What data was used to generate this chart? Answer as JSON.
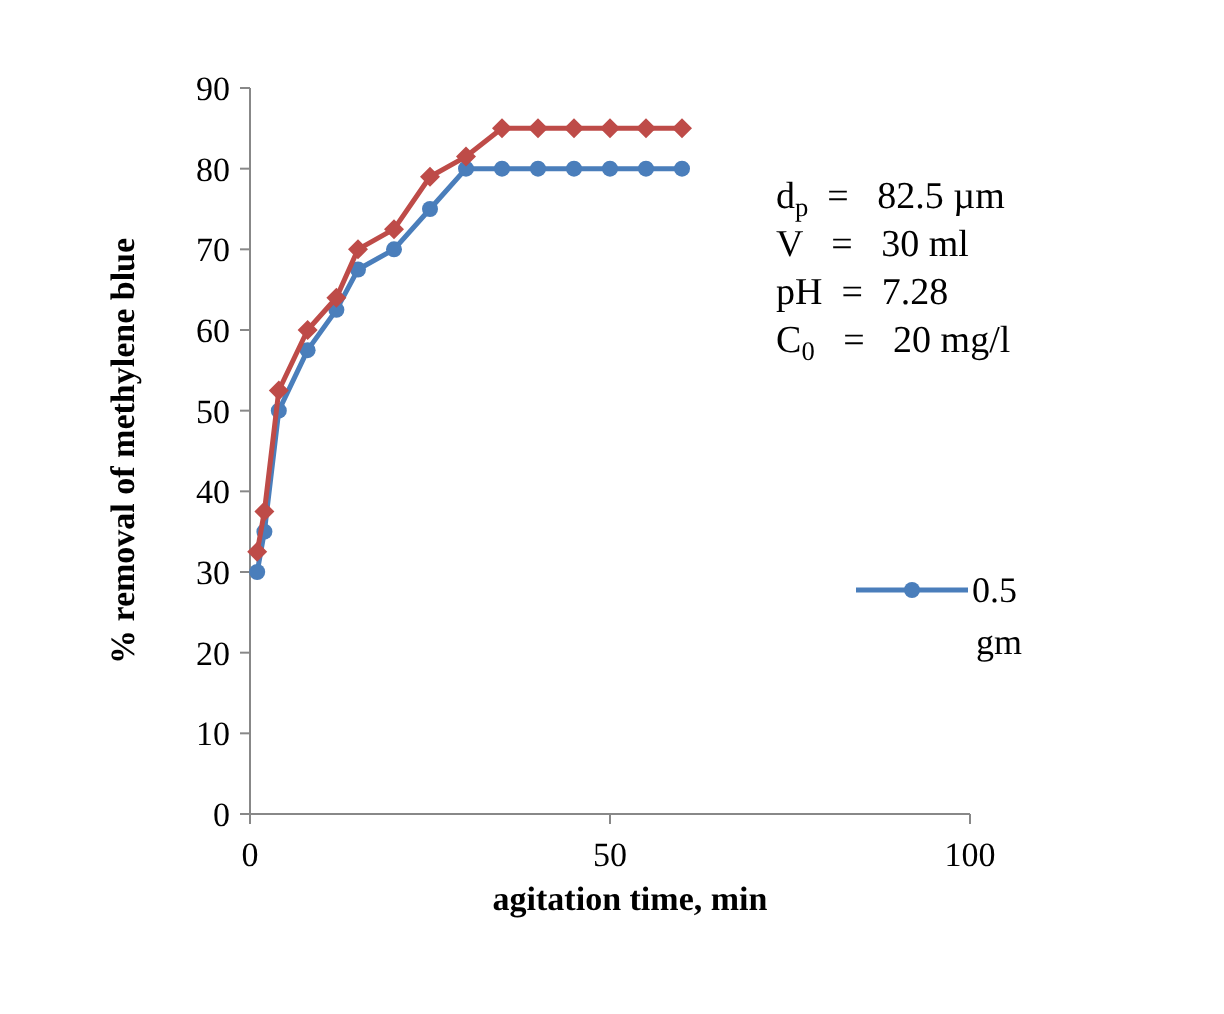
{
  "chart_data": {
    "type": "line",
    "xlabel": "agitation time, min",
    "ylabel": "% removal of methylene blue",
    "xlim": [
      0,
      100
    ],
    "xticks": [
      0,
      50,
      100
    ],
    "ylim": [
      0,
      90
    ],
    "yticks": [
      0,
      10,
      20,
      30,
      40,
      50,
      60,
      70,
      80,
      90
    ],
    "x": [
      1,
      2,
      4,
      8,
      12,
      15,
      20,
      25,
      30,
      35,
      40,
      45,
      50,
      55,
      60
    ],
    "series": [
      {
        "name": "0.5 gm",
        "color": "#4a7ebb",
        "marker": "circle",
        "values": [
          30,
          35,
          50,
          57.5,
          62.5,
          67.5,
          70,
          75,
          80,
          80,
          80,
          80,
          80,
          80,
          80
        ]
      },
      {
        "color": "#be4b48",
        "marker": "diamond",
        "values": [
          32.5,
          37.5,
          52.5,
          60,
          64,
          70,
          72.5,
          79,
          81.5,
          85,
          85,
          85,
          85,
          85,
          85
        ]
      }
    ],
    "annotations": [
      "d$_{p}$  =   82.5 µm",
      "V   =   30 ml",
      "pH  =  7.28",
      "C$_{0}$   =   20 mg/l"
    ],
    "legend": "right",
    "grid": false
  }
}
